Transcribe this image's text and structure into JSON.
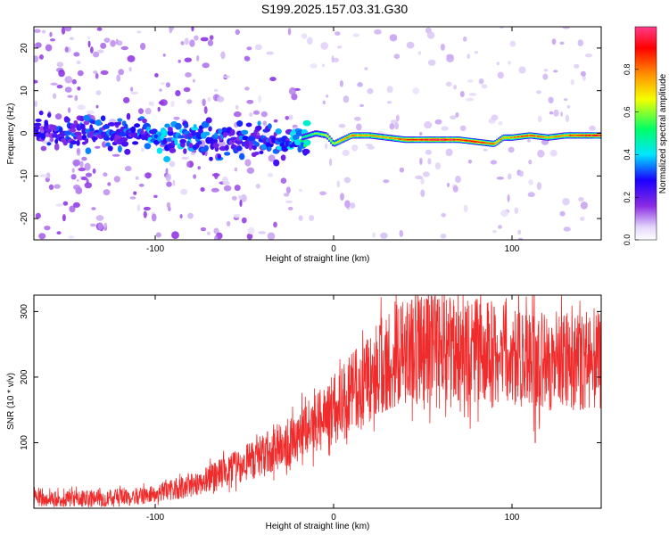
{
  "title": "S199.2025.157.03.31.G30",
  "colors": {
    "snr_line": "#ef2b2b",
    "frame": "#000000",
    "background": "#ffffff",
    "colormap": [
      "#ffffff",
      "#d9c6f6",
      "#8a2be2",
      "#1a00ff",
      "#00e5ff",
      "#00ff66",
      "#f5ff00",
      "#ff8c00",
      "#ff0000",
      "#ff3c8a"
    ]
  },
  "chart_data": [
    {
      "type": "heatmap",
      "title": "S199.2025.157.03.31.G30",
      "xlabel": "Height of straight line (km)",
      "ylabel": "Frequency (Hz)",
      "xlim": [
        -168,
        150
      ],
      "ylim": [
        -25,
        25
      ],
      "xticks": [
        -100,
        0,
        100
      ],
      "yticks": [
        -20,
        -10,
        0,
        10,
        20
      ],
      "grid": false,
      "colorbar": {
        "label": "Normalized spectral amplitude",
        "range": [
          0,
          1
        ],
        "ticks": [
          0.0,
          0.2,
          0.4,
          0.6,
          0.8
        ]
      },
      "ridge": {
        "x": [
          -168,
          -140,
          -120,
          -100,
          -80,
          -60,
          -40,
          -25,
          -18,
          -10,
          -4,
          0,
          5,
          10,
          20,
          30,
          40,
          50,
          60,
          70,
          80,
          90,
          95,
          100,
          110,
          120,
          130,
          140,
          150
        ],
        "frequency": [
          0,
          0.5,
          0,
          -0.5,
          -1,
          -1.5,
          -2,
          -2,
          -1,
          0,
          -0.5,
          -2.5,
          -1.5,
          -0.5,
          -0.5,
          -1,
          -1.5,
          -1.5,
          -1.5,
          -1.5,
          -2,
          -2.5,
          -1,
          -1,
          -0.5,
          -1,
          -0.5,
          -0.5,
          -0.5
        ],
        "amplitude": [
          0.25,
          0.3,
          0.3,
          0.35,
          0.35,
          0.3,
          0.3,
          0.35,
          0.45,
          0.55,
          0.6,
          0.6,
          0.7,
          0.75,
          0.7,
          0.7,
          0.8,
          0.85,
          0.9,
          0.85,
          0.85,
          0.75,
          0.7,
          0.75,
          0.8,
          0.7,
          0.75,
          0.85,
          0.9
        ]
      }
    },
    {
      "type": "line",
      "xlabel": "Height of straight line (km)",
      "ylabel": "SNR (10 * v/v)",
      "xlim": [
        -168,
        150
      ],
      "ylim": [
        0,
        325
      ],
      "xticks": [
        -100,
        0,
        100
      ],
      "yticks": [
        100,
        200,
        300
      ],
      "grid": false,
      "series": [
        {
          "trend": {
            "x": [
              -168,
              -140,
              -110,
              -95,
              -80,
              -60,
              -40,
              -20,
              -10,
              0,
              10,
              20,
              30,
              40,
              50,
              60,
              80,
              100,
              120,
              150
            ],
            "y": [
              15,
              15,
              18,
              25,
              35,
              55,
              80,
              110,
              130,
              150,
              175,
              200,
              225,
              240,
              245,
              245,
              240,
              230,
              225,
              225
            ]
          },
          "notable_points": [
            {
              "x": 113,
              "y": 100
            },
            {
              "x": 108,
              "y": 323
            },
            {
              "x": 146,
              "y": 305
            }
          ]
        }
      ]
    }
  ]
}
